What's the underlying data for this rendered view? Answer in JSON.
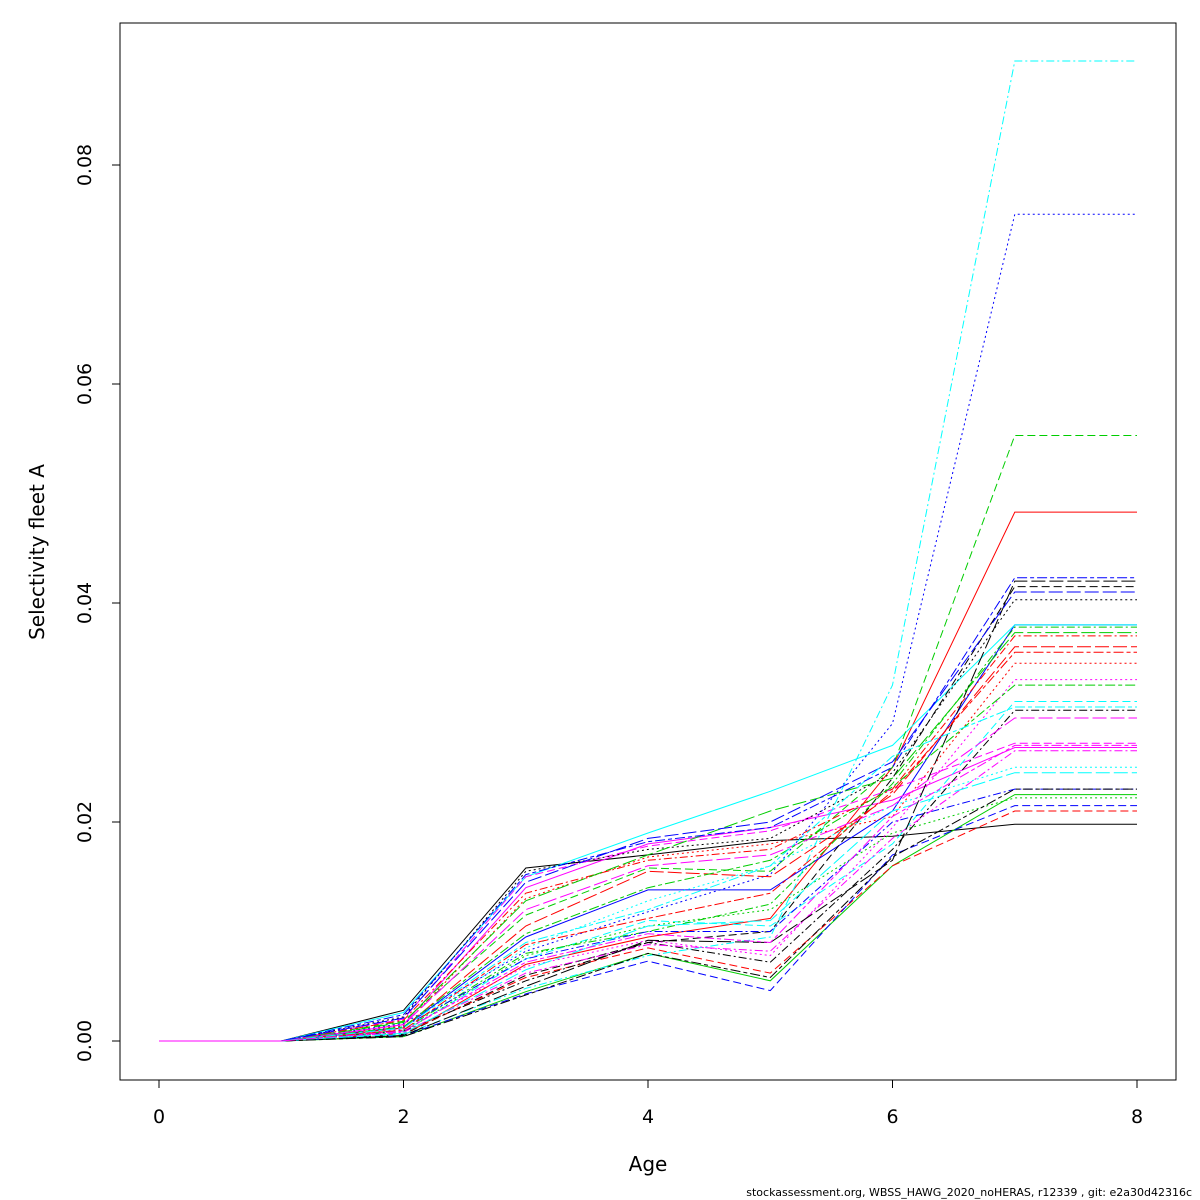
{
  "chart_data": {
    "type": "line",
    "title": "",
    "xlabel": "Age",
    "ylabel": "Selectivity fleet A",
    "xlim": [
      0,
      8
    ],
    "ylim": [
      0,
      0.09
    ],
    "x": [
      0,
      1,
      2,
      3,
      4,
      5,
      6,
      7,
      8
    ],
    "x_ticks": [
      "0",
      "2",
      "4",
      "6",
      "8"
    ],
    "y_ticks": [
      "0.00",
      "0.02",
      "0.04",
      "0.06",
      "0.08"
    ],
    "grid": false,
    "legend": "none",
    "series": [
      {
        "values": [
          0,
          0,
          0.0028,
          0.0158,
          0.017,
          0.0183,
          0.0187,
          0.0198,
          0.0198
        ],
        "color": "#000000",
        "dash": "solid"
      },
      {
        "values": [
          0,
          0,
          0.0005,
          0.007,
          0.0095,
          0.0112,
          0.025,
          0.0483,
          0.0483
        ],
        "color": "#ff0000",
        "dash": "solid"
      },
      {
        "values": [
          0,
          0,
          0.0004,
          0.0045,
          0.008,
          0.0055,
          0.016,
          0.0225,
          0.0225
        ],
        "color": "#00cd00",
        "dash": "solid"
      },
      {
        "values": [
          0,
          0,
          0.0012,
          0.0095,
          0.0138,
          0.0138,
          0.021,
          0.038,
          0.038
        ],
        "color": "#0000ff",
        "dash": "solid"
      },
      {
        "values": [
          0,
          0,
          0.0026,
          0.015,
          0.019,
          0.0228,
          0.027,
          0.038,
          0.038
        ],
        "color": "#00ffff",
        "dash": "solid"
      },
      {
        "values": [
          0,
          0,
          0.0015,
          0.014,
          0.018,
          0.0195,
          0.022,
          0.0268,
          0.0268
        ],
        "color": "#ff00ff",
        "dash": "solid"
      },
      {
        "values": [
          0,
          0,
          0.0006,
          0.006,
          0.009,
          0.01,
          0.024,
          0.0415,
          0.0415
        ],
        "color": "#000000",
        "dash": "dashed"
      },
      {
        "values": [
          0,
          0,
          0.0007,
          0.0058,
          0.0085,
          0.0062,
          0.016,
          0.021,
          0.021
        ],
        "color": "#ff0000",
        "dash": "dashed"
      },
      {
        "values": [
          0,
          0,
          0.0018,
          0.0115,
          0.0158,
          0.0155,
          0.025,
          0.0553,
          0.0553
        ],
        "color": "#00cd00",
        "dash": "dashed"
      },
      {
        "values": [
          0,
          0,
          0.0005,
          0.0043,
          0.0073,
          0.0046,
          0.017,
          0.0215,
          0.0215
        ],
        "color": "#0000ff",
        "dash": "dashed"
      },
      {
        "values": [
          0,
          0,
          0.0009,
          0.0075,
          0.011,
          0.0105,
          0.018,
          0.031,
          0.031
        ],
        "color": "#00ffff",
        "dash": "dashed"
      },
      {
        "values": [
          0,
          0,
          0.002,
          0.015,
          0.0178,
          0.0192,
          0.023,
          0.0272,
          0.0272
        ],
        "color": "#ff00ff",
        "dash": "dashed"
      },
      {
        "values": [
          0,
          0,
          0.0022,
          0.0155,
          0.0175,
          0.0185,
          0.0245,
          0.0403,
          0.0403
        ],
        "color": "#000000",
        "dash": "dotted"
      },
      {
        "values": [
          0,
          0,
          0.0014,
          0.013,
          0.0168,
          0.018,
          0.0205,
          0.0345,
          0.0345
        ],
        "color": "#ff0000",
        "dash": "dotted"
      },
      {
        "values": [
          0,
          0,
          0.0008,
          0.0078,
          0.0105,
          0.012,
          0.019,
          0.0222,
          0.0222
        ],
        "color": "#00cd00",
        "dash": "dotted"
      },
      {
        "values": [
          0,
          0,
          0.0016,
          0.0082,
          0.0118,
          0.0152,
          0.029,
          0.0755,
          0.0755
        ],
        "color": "#0000ff",
        "dash": "dotted"
      },
      {
        "values": [
          0,
          0,
          0.001,
          0.0085,
          0.0128,
          0.016,
          0.0215,
          0.025,
          0.025
        ],
        "color": "#00ffff",
        "dash": "dotted"
      },
      {
        "values": [
          0,
          0,
          0.0011,
          0.0068,
          0.0092,
          0.0078,
          0.0195,
          0.033,
          0.033
        ],
        "color": "#ff00ff",
        "dash": "dotted"
      },
      {
        "values": [
          0,
          0,
          0.0009,
          0.0055,
          0.009,
          0.0072,
          0.0175,
          0.0302,
          0.0302
        ],
        "color": "#000000",
        "dash": "dotdash"
      },
      {
        "values": [
          0,
          0,
          0.0019,
          0.0135,
          0.0165,
          0.0175,
          0.023,
          0.037,
          0.037
        ],
        "color": "#ff0000",
        "dash": "dotdash"
      },
      {
        "values": [
          0,
          0,
          0.001,
          0.008,
          0.01,
          0.0125,
          0.0235,
          0.0378,
          0.0378
        ],
        "color": "#00cd00",
        "dash": "dotdash"
      },
      {
        "values": [
          0,
          0,
          0.0013,
          0.0075,
          0.01,
          0.01,
          0.02,
          0.023,
          0.023
        ],
        "color": "#0000ff",
        "dash": "dotdash"
      },
      {
        "values": [
          0,
          0,
          0.0006,
          0.0048,
          0.0078,
          0.0095,
          0.0325,
          0.0895,
          0.0895
        ],
        "color": "#00ffff",
        "dash": "dotdash"
      },
      {
        "values": [
          0,
          0,
          0.0008,
          0.0062,
          0.0088,
          0.0082,
          0.0185,
          0.0265,
          0.0265
        ],
        "color": "#ff00ff",
        "dash": "dotdash"
      },
      {
        "values": [
          0,
          0,
          0.0005,
          0.005,
          0.0092,
          0.009,
          0.0165,
          0.042,
          0.042
        ],
        "color": "#000000",
        "dash": "longdash"
      },
      {
        "values": [
          0,
          0,
          0.0012,
          0.0105,
          0.0155,
          0.015,
          0.0225,
          0.036,
          0.036
        ],
        "color": "#ff0000",
        "dash": "longdash"
      },
      {
        "values": [
          0,
          0,
          0.0017,
          0.0128,
          0.017,
          0.021,
          0.024,
          0.0373,
          0.0373
        ],
        "color": "#00cd00",
        "dash": "longdash"
      },
      {
        "values": [
          0,
          0,
          0.0021,
          0.0145,
          0.0185,
          0.02,
          0.0255,
          0.041,
          0.041
        ],
        "color": "#0000ff",
        "dash": "longdash"
      },
      {
        "values": [
          0,
          0,
          0.0007,
          0.0065,
          0.0105,
          0.011,
          0.021,
          0.0245,
          0.0245
        ],
        "color": "#00ffff",
        "dash": "longdash"
      },
      {
        "values": [
          0,
          0,
          0.0015,
          0.012,
          0.016,
          0.017,
          0.0215,
          0.0295,
          0.0295
        ],
        "color": "#ff00ff",
        "dash": "longdash"
      },
      {
        "values": [
          0,
          0,
          0.0004,
          0.0042,
          0.008,
          0.0058,
          0.0168,
          0.023,
          0.023
        ],
        "color": "#000000",
        "dash": "twodash"
      },
      {
        "values": [
          0,
          0,
          0.001,
          0.0088,
          0.0112,
          0.0135,
          0.0228,
          0.0355,
          0.0355
        ],
        "color": "#ff0000",
        "dash": "twodash"
      },
      {
        "values": [
          0,
          0,
          0.0013,
          0.0098,
          0.014,
          0.0165,
          0.0232,
          0.0325,
          0.0325
        ],
        "color": "#00cd00",
        "dash": "twodash"
      },
      {
        "values": [
          0,
          0,
          0.0024,
          0.0152,
          0.0182,
          0.0195,
          0.025,
          0.0423,
          0.0423
        ],
        "color": "#0000ff",
        "dash": "twodash"
      },
      {
        "values": [
          0,
          0,
          0.0012,
          0.009,
          0.012,
          0.016,
          0.026,
          0.0305,
          0.0305
        ],
        "color": "#00ffff",
        "dash": "twodash"
      },
      {
        "values": [
          0,
          0,
          0.0009,
          0.0072,
          0.0098,
          0.009,
          0.0205,
          0.027,
          0.027
        ],
        "color": "#ff00ff",
        "dash": "twodash"
      }
    ]
  },
  "footer": {
    "text": "stockassessment.org, WBSS_HAWG_2020_noHERAS, r12339 , git: e2a30d42316c"
  }
}
